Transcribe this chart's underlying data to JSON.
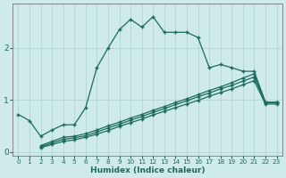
{
  "xlabel": "Humidex (Indice chaleur)",
  "ylabel": "",
  "bg_color": "#ceeaea",
  "line_color": "#1a6b5e",
  "grid_color": "#b8d8d8",
  "xlim": [
    -0.5,
    23.5
  ],
  "ylim": [
    -0.08,
    2.85
  ],
  "yticks": [
    0,
    1,
    2
  ],
  "xticks": [
    0,
    1,
    2,
    3,
    4,
    5,
    6,
    7,
    8,
    9,
    10,
    11,
    12,
    13,
    14,
    15,
    16,
    17,
    18,
    19,
    20,
    21,
    22,
    23
  ],
  "line1_x": [
    0,
    1,
    2,
    3,
    4,
    5,
    6,
    7,
    8,
    9,
    10,
    11,
    12,
    13,
    14,
    15,
    16,
    17,
    18,
    19,
    20,
    21,
    22,
    23
  ],
  "line1_y": [
    0.72,
    0.6,
    0.3,
    0.42,
    0.52,
    0.52,
    0.85,
    1.62,
    2.0,
    2.35,
    2.55,
    2.4,
    2.6,
    2.3,
    2.3,
    2.3,
    2.2,
    1.62,
    1.68,
    1.62,
    1.55,
    1.55,
    0.95,
    0.95
  ],
  "line2_x": [
    2,
    3,
    4,
    5,
    6,
    7,
    8,
    9,
    10,
    11,
    12,
    13,
    14,
    15,
    16,
    17,
    18,
    19,
    20,
    21,
    22,
    23
  ],
  "line2_y": [
    0.12,
    0.2,
    0.28,
    0.3,
    0.35,
    0.42,
    0.5,
    0.57,
    0.65,
    0.72,
    0.8,
    0.87,
    0.95,
    1.02,
    1.1,
    1.18,
    1.25,
    1.33,
    1.42,
    1.5,
    0.95,
    0.95
  ],
  "line3_x": [
    2,
    3,
    4,
    5,
    6,
    7,
    8,
    9,
    10,
    11,
    12,
    13,
    14,
    15,
    16,
    17,
    18,
    19,
    20,
    21,
    22,
    23
  ],
  "line3_y": [
    0.1,
    0.17,
    0.24,
    0.27,
    0.31,
    0.38,
    0.46,
    0.53,
    0.61,
    0.68,
    0.76,
    0.83,
    0.91,
    0.98,
    1.06,
    1.13,
    1.21,
    1.28,
    1.36,
    1.44,
    0.95,
    0.95
  ],
  "line4_x": [
    2,
    3,
    4,
    5,
    6,
    7,
    8,
    9,
    10,
    11,
    12,
    13,
    14,
    15,
    16,
    17,
    18,
    19,
    20,
    21,
    22,
    23
  ],
  "line4_y": [
    0.08,
    0.14,
    0.2,
    0.23,
    0.28,
    0.34,
    0.41,
    0.49,
    0.56,
    0.63,
    0.71,
    0.78,
    0.85,
    0.92,
    0.99,
    1.07,
    1.14,
    1.21,
    1.29,
    1.37,
    0.92,
    0.92
  ]
}
